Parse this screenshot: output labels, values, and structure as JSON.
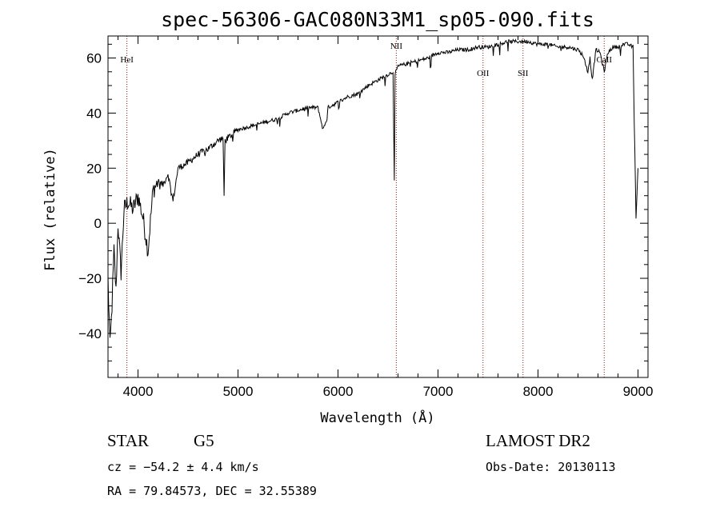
{
  "chart_data": {
    "type": "line",
    "title": "spec-56306-GAC080N33M1_sp05-090.fits",
    "xlabel": "Wavelength (Å)",
    "ylabel": "Flux (relative)",
    "xlim": [
      3700,
      9100
    ],
    "ylim": [
      -56,
      68
    ],
    "xticks": [
      4000,
      5000,
      6000,
      7000,
      8000,
      9000
    ],
    "yticks": [
      -40,
      -20,
      0,
      20,
      40,
      60
    ],
    "grid": false,
    "series": [
      {
        "x": [
          3700,
          3720,
          3740,
          3760,
          3780,
          3800,
          3830,
          3860,
          3900,
          3950,
          4000,
          4050,
          4100,
          4150,
          4200,
          4250,
          4300,
          4350,
          4400,
          4500,
          4600,
          4700,
          4800,
          4850,
          4861,
          4870,
          4900,
          5000,
          5100,
          5200,
          5300,
          5400,
          5500,
          5600,
          5700,
          5800,
          5850,
          5890,
          5900,
          6000,
          6100,
          6200,
          6300,
          6400,
          6500,
          6550,
          6563,
          6570,
          6600,
          6700,
          6800,
          6900,
          7000,
          7100,
          7200,
          7300,
          7400,
          7500,
          7600,
          7700,
          7750,
          7800,
          7900,
          8000,
          8100,
          8200,
          8300,
          8400,
          8450,
          8498,
          8520,
          8542,
          8580,
          8620,
          8662,
          8700,
          8750,
          8800,
          8850,
          8900,
          8950,
          8980,
          9000
        ],
        "values": [
          -20,
          -45,
          -30,
          -10,
          -25,
          0,
          -18,
          5,
          8,
          5,
          10,
          2,
          -10,
          12,
          15,
          14,
          18,
          8,
          20,
          22,
          25,
          27,
          30,
          31,
          10,
          30,
          31,
          34,
          35,
          36,
          37,
          38,
          40,
          41,
          42,
          42,
          34,
          38,
          42,
          44,
          46,
          47,
          50,
          52,
          54,
          55,
          15,
          54,
          57,
          58,
          59,
          60,
          62,
          62,
          63,
          63,
          64,
          64,
          65,
          66,
          66,
          66,
          66,
          65,
          65,
          64,
          64,
          63,
          61,
          55,
          60,
          52,
          63,
          62,
          55,
          62,
          64,
          64,
          65,
          65,
          64,
          2,
          20
        ]
      }
    ],
    "lines": [
      {
        "label": "HeI",
        "wavelength": 3889
      },
      {
        "label": "NII",
        "wavelength": 6583
      },
      {
        "label": "OII",
        "wavelength": 7450
      },
      {
        "label": "SII",
        "wavelength": 7850
      },
      {
        "label": "CaII",
        "wavelength": 8662
      }
    ]
  },
  "info": {
    "object_class": "STAR",
    "subclass": "G5",
    "survey": "LAMOST DR2",
    "cz": "cz = −54.2 ± 4.4 km/s",
    "obs_date": "Obs-Date: 20130113",
    "coords": "RA =  79.84573, DEC =  32.55389"
  },
  "colors": {
    "line_marker": "#8b1a1a",
    "spectrum": "#000000"
  }
}
